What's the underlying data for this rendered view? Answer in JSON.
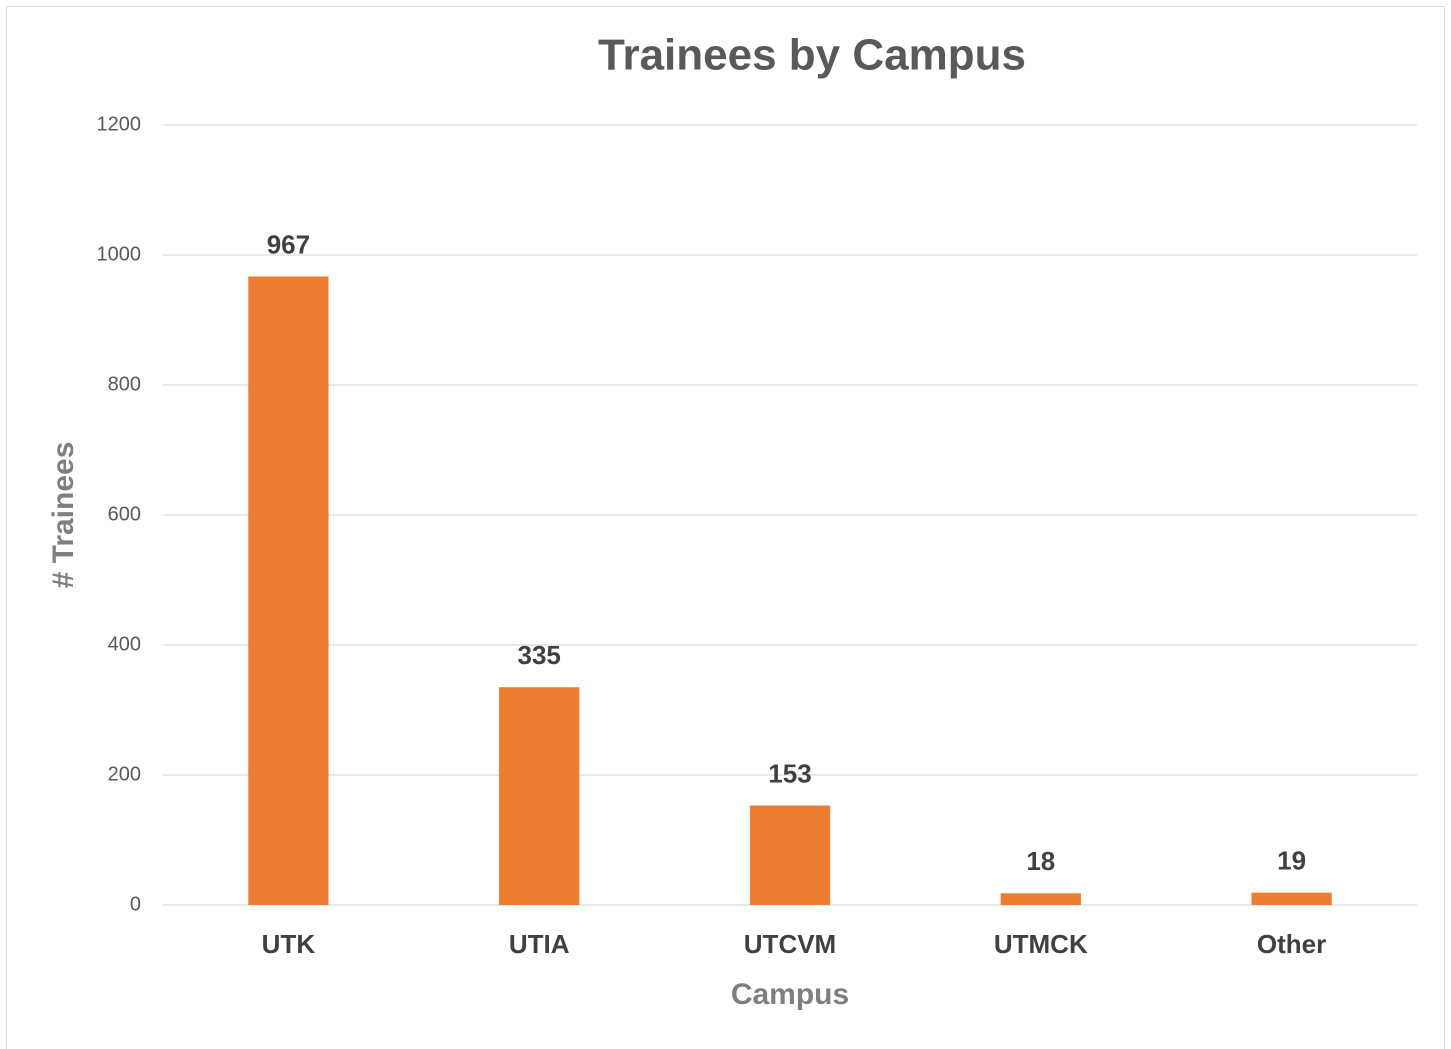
{
  "chart_data": {
    "type": "bar",
    "title": "Trainees by Campus",
    "x_label": "Campus",
    "y_label": "# Trainees",
    "categories": [
      "UTK",
      "UTIA",
      "UTCVM",
      "UTMCK",
      "Other"
    ],
    "values": [
      967,
      335,
      153,
      18,
      19
    ],
    "color": "#ed7d31",
    "ylim": [
      0,
      1200
    ],
    "yticks": [
      0,
      200,
      400,
      600,
      800,
      1000,
      1200
    ],
    "grid": true
  }
}
